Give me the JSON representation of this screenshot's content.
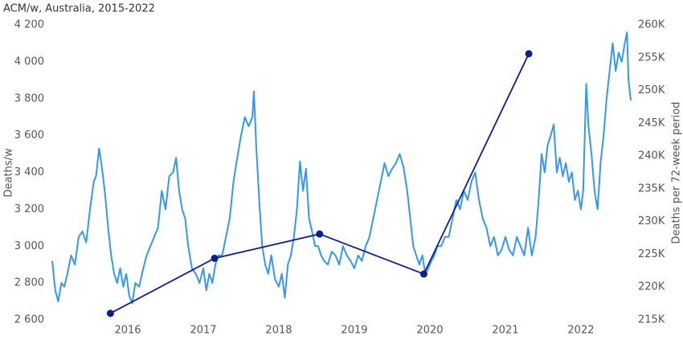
{
  "chart_data": {
    "type": "line",
    "title": "ACM/w, Australia, 2015-2022",
    "ylabel": "Deaths/w",
    "y2label": "Deaths per 72-week period",
    "xlim": [
      2015.0,
      2022.66
    ],
    "xticks": [
      2016,
      2017,
      2018,
      2019,
      2020,
      2021,
      2022
    ],
    "ylim": [
      2600,
      4200
    ],
    "yticks": [
      {
        "value": 2600,
        "label": "2 600"
      },
      {
        "value": 2800,
        "label": "2 800"
      },
      {
        "value": 3000,
        "label": "3 000"
      },
      {
        "value": 3200,
        "label": "3 200"
      },
      {
        "value": 3400,
        "label": "3 400"
      },
      {
        "value": 3600,
        "label": "3 600"
      },
      {
        "value": 3800,
        "label": "3 800"
      },
      {
        "value": 4000,
        "label": "4 000"
      },
      {
        "value": 4200,
        "label": "4 200"
      }
    ],
    "y2lim": [
      215000,
      260000
    ],
    "y2ticks": [
      {
        "value": 215000,
        "label": "215K"
      },
      {
        "value": 220000,
        "label": "220K"
      },
      {
        "value": 225000,
        "label": "225K"
      },
      {
        "value": 230000,
        "label": "230K"
      },
      {
        "value": 235000,
        "label": "235K"
      },
      {
        "value": 240000,
        "label": "240K"
      },
      {
        "value": 245000,
        "label": "245K"
      },
      {
        "value": 250000,
        "label": "250K"
      },
      {
        "value": 255000,
        "label": "255K"
      },
      {
        "value": 260000,
        "label": "260K"
      }
    ],
    "grid": false,
    "series": [
      {
        "color": "#3598e8",
        "axis": "y",
        "x": [
          2015.0,
          2015.04,
          2015.08,
          2015.12,
          2015.16,
          2015.2,
          2015.25,
          2015.3,
          2015.35,
          2015.4,
          2015.45,
          2015.5,
          2015.55,
          2015.58,
          2015.62,
          2015.66,
          2015.7,
          2015.74,
          2015.78,
          2015.82,
          2015.86,
          2015.9,
          2015.94,
          2015.98,
          2016.02,
          2016.06,
          2016.1,
          2016.15,
          2016.2,
          2016.25,
          2016.3,
          2016.35,
          2016.4,
          2016.45,
          2016.5,
          2016.55,
          2016.6,
          2016.64,
          2016.68,
          2016.72,
          2016.76,
          2016.8,
          2016.85,
          2016.9,
          2016.95,
          2017.0,
          2017.04,
          2017.08,
          2017.12,
          2017.16,
          2017.2,
          2017.25,
          2017.3,
          2017.35,
          2017.4,
          2017.45,
          2017.5,
          2017.55,
          2017.6,
          2017.65,
          2017.67,
          2017.7,
          2017.74,
          2017.78,
          2017.82,
          2017.86,
          2017.9,
          2017.95,
          2018.0,
          2018.04,
          2018.08,
          2018.12,
          2018.16,
          2018.2,
          2018.24,
          2018.28,
          2018.32,
          2018.36,
          2018.4,
          2018.44,
          2018.48,
          2018.52,
          2018.56,
          2018.6,
          2018.65,
          2018.7,
          2018.75,
          2018.8,
          2018.85,
          2018.9,
          2018.95,
          2019.0,
          2019.05,
          2019.1,
          2019.15,
          2019.2,
          2019.25,
          2019.3,
          2019.35,
          2019.4,
          2019.45,
          2019.5,
          2019.55,
          2019.6,
          2019.65,
          2019.7,
          2019.74,
          2019.78,
          2019.82,
          2019.86,
          2019.9,
          2019.94,
          2019.98,
          2020.02,
          2020.06,
          2020.1,
          2020.15,
          2020.2,
          2020.25,
          2020.3,
          2020.35,
          2020.4,
          2020.45,
          2020.5,
          2020.55,
          2020.6,
          2020.65,
          2020.7,
          2020.75,
          2020.8,
          2020.85,
          2020.9,
          2020.95,
          2021.0,
          2021.05,
          2021.1,
          2021.15,
          2021.2,
          2021.25,
          2021.3,
          2021.35,
          2021.4,
          2021.44,
          2021.48,
          2021.52,
          2021.56,
          2021.6,
          2021.64,
          2021.68,
          2021.72,
          2021.76,
          2021.8,
          2021.84,
          2021.88,
          2021.92,
          2021.96,
          2022.0,
          2022.03,
          2022.07,
          2022.1,
          2022.14,
          2022.18,
          2022.22,
          2022.26,
          2022.3,
          2022.34,
          2022.38,
          2022.42,
          2022.46,
          2022.5,
          2022.54,
          2022.58,
          2022.61,
          2022.63,
          2022.66
        ],
        "values": [
          2920,
          2760,
          2700,
          2800,
          2780,
          2850,
          2950,
          2900,
          3050,
          3080,
          3020,
          3200,
          3350,
          3380,
          3530,
          3420,
          3280,
          3100,
          2950,
          2850,
          2800,
          2880,
          2780,
          2850,
          2730,
          2690,
          2800,
          2780,
          2870,
          2950,
          3000,
          3050,
          3100,
          3300,
          3200,
          3380,
          3400,
          3480,
          3300,
          3200,
          3150,
          3000,
          2880,
          2850,
          2800,
          2880,
          2760,
          2850,
          2800,
          2900,
          2950,
          2950,
          3050,
          3150,
          3350,
          3480,
          3600,
          3700,
          3650,
          3700,
          3840,
          3550,
          3250,
          3000,
          2900,
          2850,
          2950,
          2820,
          2780,
          2850,
          2720,
          2900,
          2950,
          3050,
          3200,
          3460,
          3300,
          3420,
          3150,
          3080,
          3000,
          3000,
          2950,
          2920,
          2900,
          2970,
          2950,
          2900,
          3000,
          2950,
          2920,
          2880,
          2950,
          2920,
          3000,
          3050,
          3150,
          3250,
          3350,
          3450,
          3380,
          3420,
          3450,
          3500,
          3430,
          3300,
          3150,
          3000,
          2950,
          2900,
          2950,
          2850,
          2880,
          2920,
          2950,
          3000,
          3000,
          3050,
          3050,
          3150,
          3250,
          3200,
          3300,
          3250,
          3350,
          3400,
          3250,
          3150,
          3100,
          3000,
          3050,
          2950,
          2980,
          3050,
          2980,
          2950,
          3050,
          3000,
          2950,
          3100,
          2950,
          3050,
          3250,
          3500,
          3400,
          3550,
          3600,
          3660,
          3400,
          3480,
          3380,
          3450,
          3350,
          3400,
          3250,
          3300,
          3200,
          3300,
          3880,
          3650,
          3500,
          3300,
          3200,
          3450,
          3600,
          3800,
          3950,
          4100,
          3950,
          4050,
          4000,
          4100,
          4160,
          3900,
          3790
        ]
      },
      {
        "color": "#0e1e8c",
        "axis": "y2",
        "markers": true,
        "x": [
          2015.77,
          2017.15,
          2018.54,
          2019.92,
          2021.31
        ],
        "values": [
          216000,
          224400,
          228100,
          222000,
          255600
        ]
      }
    ]
  }
}
